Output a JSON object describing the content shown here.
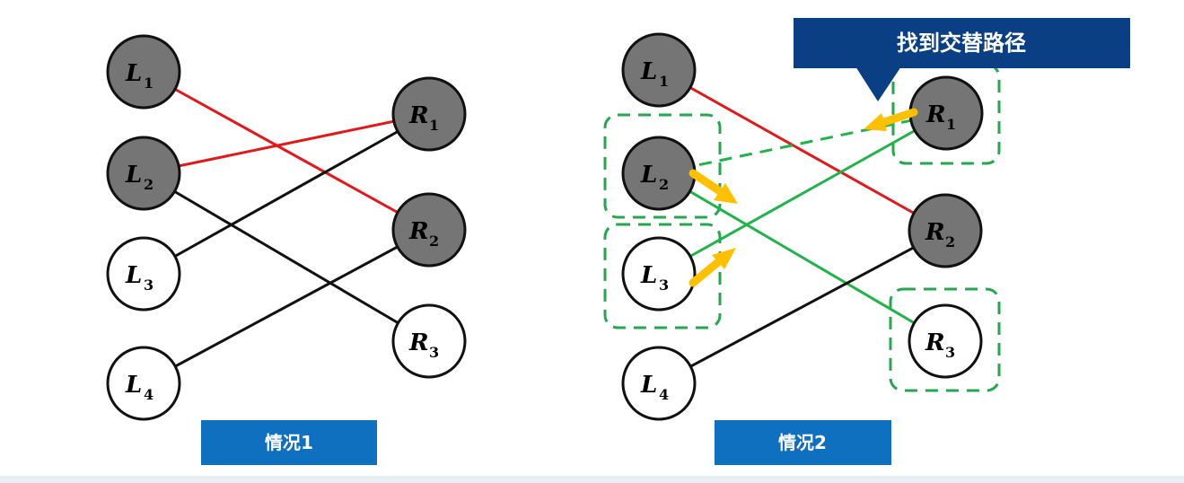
{
  "colors": {
    "matched_node_fill": "#757575",
    "free_node_fill": "#ffffff",
    "node_stroke": "#111111",
    "matched_edge": "#e0191c",
    "unmatched_edge": "#111111",
    "augment_edge": "#22b24c",
    "dashed_edge": "#22b24c",
    "highlight_box": "#27a650",
    "arrow": "#ffc000",
    "caption_bg": "#0f70c0",
    "callout_bg": "#0a3f84"
  },
  "case1": {
    "caption": "情况1",
    "left_nodes": [
      {
        "letter": "L",
        "sub": "1",
        "matched": true
      },
      {
        "letter": "L",
        "sub": "2",
        "matched": true
      },
      {
        "letter": "L",
        "sub": "3",
        "matched": false
      },
      {
        "letter": "L",
        "sub": "4",
        "matched": false
      }
    ],
    "right_nodes": [
      {
        "letter": "R",
        "sub": "1",
        "matched": true
      },
      {
        "letter": "R",
        "sub": "2",
        "matched": true
      },
      {
        "letter": "R",
        "sub": "3",
        "matched": false
      }
    ],
    "edges": [
      {
        "from": "L1",
        "to": "R2",
        "kind": "matched"
      },
      {
        "from": "L2",
        "to": "R1",
        "kind": "matched"
      },
      {
        "from": "L2",
        "to": "R3",
        "kind": "unmatched"
      },
      {
        "from": "L3",
        "to": "R1",
        "kind": "unmatched"
      },
      {
        "from": "L4",
        "to": "R2",
        "kind": "unmatched"
      }
    ]
  },
  "case2": {
    "caption": "情况2",
    "callout": "找到交替路径",
    "left_nodes": [
      {
        "letter": "L",
        "sub": "1",
        "matched": true
      },
      {
        "letter": "L",
        "sub": "2",
        "matched": true
      },
      {
        "letter": "L",
        "sub": "3",
        "matched": false
      },
      {
        "letter": "L",
        "sub": "4",
        "matched": false
      }
    ],
    "right_nodes": [
      {
        "letter": "R",
        "sub": "1",
        "matched": true
      },
      {
        "letter": "R",
        "sub": "2",
        "matched": true
      },
      {
        "letter": "R",
        "sub": "3",
        "matched": false
      }
    ],
    "edges": [
      {
        "from": "L1",
        "to": "R2",
        "kind": "matched"
      },
      {
        "from": "L2",
        "to": "R1",
        "kind": "dashed"
      },
      {
        "from": "L2",
        "to": "R3",
        "kind": "augment"
      },
      {
        "from": "L3",
        "to": "R1",
        "kind": "augment"
      },
      {
        "from": "L4",
        "to": "R2",
        "kind": "unmatched"
      }
    ],
    "highlighted": [
      "L2",
      "L3",
      "R1",
      "R3"
    ]
  }
}
